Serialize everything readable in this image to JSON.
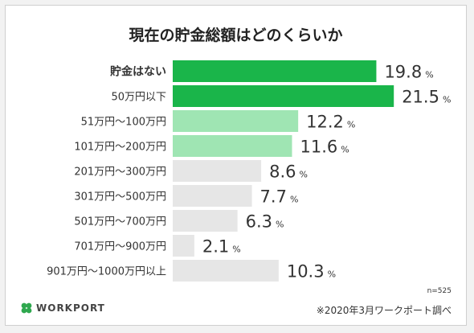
{
  "title": "現在の貯金総額はどのくらいか",
  "brand": "WORKPORT",
  "sample_note": "n=525",
  "source_note": "※2020年3月ワークポート調べ",
  "percent_sign": "%",
  "colors": {
    "dark_green": "#1ab54a",
    "light_green": "#9fe5b3",
    "gray": "#e6e6e6",
    "logo_green": "#2fa84f"
  },
  "chart_data": {
    "type": "bar",
    "orientation": "horizontal",
    "title": "現在の貯金総額はどのくらいか",
    "categories": [
      "貯金はない",
      "50万円以下",
      "51万円～100万円",
      "101万円～200万円",
      "201万円～300万円",
      "301万円～500万円",
      "501万円～700万円",
      "701万円～900万円",
      "901万円～1000万円以上"
    ],
    "values": [
      19.8,
      21.5,
      12.2,
      11.6,
      8.6,
      7.7,
      6.3,
      2.1,
      10.3
    ],
    "value_labels": [
      "19.8",
      "21.5",
      "12.2",
      "11.6",
      "8.6",
      "7.7",
      "6.3",
      "2.1",
      "10.3"
    ],
    "bar_colors": [
      "#1ab54a",
      "#1ab54a",
      "#9fe5b3",
      "#9fe5b3",
      "#e6e6e6",
      "#e6e6e6",
      "#e6e6e6",
      "#e6e6e6",
      "#e6e6e6"
    ],
    "bold_categories": [
      0
    ],
    "unit": "%",
    "grid": false,
    "legend": "none"
  }
}
